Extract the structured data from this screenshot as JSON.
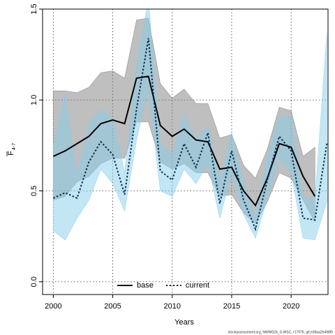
{
  "chart_data": {
    "type": "line",
    "xlabel": "Years",
    "ylabel": "F",
    "ylabel_subscript": "4-7",
    "footer": "stockassessment.org, NWW024_S-WSC, r17976, git:e38aa2b498f0",
    "x": [
      2000,
      2001,
      2002,
      2003,
      2004,
      2005,
      2006,
      2007,
      2008,
      2009,
      2010,
      2011,
      2012,
      2013,
      2014,
      2015,
      2016,
      2017,
      2018,
      2019,
      2020,
      2021,
      2022,
      2023
    ],
    "xlim": [
      1999.1,
      2023.1
    ],
    "xticks": [
      2000,
      2005,
      2010,
      2015,
      2020
    ],
    "ylim": [
      -0.07,
      1.5
    ],
    "yticks": [
      {
        "value": 0,
        "label": "0.0"
      },
      {
        "value": 0.5,
        "label": "0.5"
      },
      {
        "value": 1,
        "label": "1.0"
      },
      {
        "value": 1.5,
        "label": "1.5"
      }
    ],
    "grid": true,
    "legend": "bottom",
    "series": [
      {
        "name": "base",
        "color": "#000000",
        "band_color": "#808080",
        "dashed": false,
        "values": [
          0.69,
          0.72,
          0.76,
          0.8,
          0.87,
          0.89,
          0.87,
          1.12,
          1.13,
          0.86,
          0.8,
          0.84,
          0.78,
          0.77,
          0.62,
          0.63,
          0.5,
          0.42,
          0.57,
          0.76,
          0.74,
          0.58,
          0.47,
          null
        ],
        "upper": [
          1.05,
          1.05,
          1.04,
          1.07,
          1.15,
          1.16,
          1.12,
          1.44,
          1.45,
          1.09,
          1.01,
          1.06,
          0.98,
          0.98,
          0.79,
          0.81,
          0.64,
          0.57,
          0.73,
          0.96,
          0.94,
          0.69,
          0.74,
          null
        ],
        "lower": [
          0.45,
          0.47,
          0.55,
          0.58,
          0.65,
          0.68,
          0.68,
          0.88,
          0.88,
          0.66,
          0.62,
          0.65,
          0.6,
          0.6,
          0.47,
          0.48,
          0.38,
          0.32,
          0.44,
          0.6,
          0.57,
          0.45,
          0.33,
          null
        ]
      },
      {
        "name": "current",
        "color": "#0b2e4f",
        "band_color": "#87ceeb",
        "dashed": true,
        "values": [
          0.46,
          0.49,
          0.46,
          0.66,
          0.77,
          0.7,
          0.48,
          0.95,
          1.34,
          0.61,
          0.56,
          0.76,
          0.63,
          0.82,
          0.43,
          0.72,
          0.45,
          0.29,
          0.56,
          0.8,
          0.72,
          0.35,
          0.34,
          0.76
        ],
        "upper": [
          0.75,
          1.04,
          0.59,
          0.87,
          0.95,
          0.9,
          0.6,
          1.2,
          1.55,
          0.76,
          0.7,
          0.92,
          0.78,
          0.86,
          0.56,
          0.82,
          0.55,
          0.36,
          0.7,
          0.91,
          0.91,
          0.47,
          0.45,
          1.37
        ],
        "lower": [
          0.28,
          0.23,
          0.35,
          0.45,
          0.62,
          0.54,
          0.39,
          0.78,
          1.06,
          0.5,
          0.47,
          0.62,
          0.54,
          0.65,
          0.35,
          0.6,
          0.37,
          0.24,
          0.46,
          0.68,
          0.6,
          0.24,
          0.23,
          0.44
        ]
      }
    ]
  }
}
